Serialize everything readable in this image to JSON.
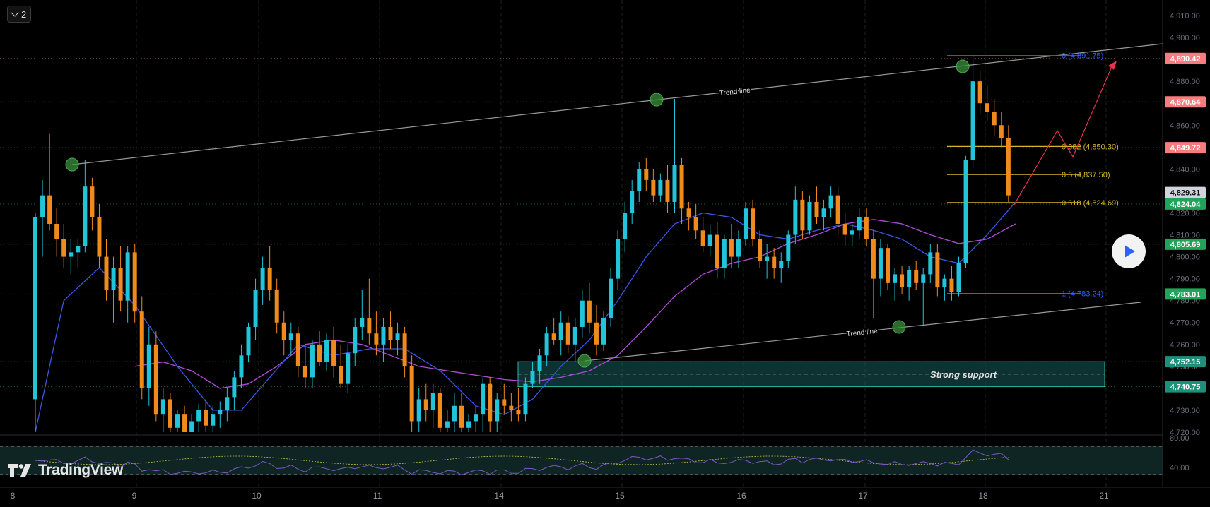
{
  "toolbar": {
    "collapse_label": "2"
  },
  "watermark": {
    "text": "TradingView"
  },
  "chart_data": {
    "type": "candlestick",
    "y_axis": {
      "ticks": [
        "4,910.00",
        "4,900.00",
        "4,890.00",
        "4,880.00",
        "4,870.00",
        "4,860.00",
        "4,850.00",
        "4,840.00",
        "4,830.00",
        "4,820.00",
        "4,810.00",
        "4,800.00",
        "4,790.00",
        "4,780.00",
        "4,770.00",
        "4,760.00",
        "4,750.00",
        "4,740.00",
        "4,730.00",
        "4,720.00"
      ],
      "range": [
        4717,
        4914
      ]
    },
    "x_axis": {
      "ticks": [
        "8",
        "9",
        "10",
        "11",
        "14",
        "15",
        "16",
        "17",
        "18",
        "21"
      ]
    },
    "price_labels": [
      {
        "value": 4890.42,
        "text": "4,890.42",
        "color": "#f77c80"
      },
      {
        "value": 4870.64,
        "text": "4,870.64",
        "color": "#f77c80"
      },
      {
        "value": 4849.72,
        "text": "4,849.72",
        "color": "#f77c80"
      },
      {
        "value": 4829.31,
        "text": "4,829.31",
        "color": "#d1d4dc"
      },
      {
        "value": 4824.04,
        "text": "4,824.04",
        "color": "#22ab94"
      },
      {
        "value": 4805.69,
        "text": "4,805.69",
        "color": "#22ab94"
      },
      {
        "value": 4783.01,
        "text": "4,783.01",
        "color": "#22ab94"
      },
      {
        "value": 4752.15,
        "text": "4,752.15",
        "color": "#22ab94"
      },
      {
        "value": 4740.75,
        "text": "4,740.75",
        "color": "#22ab94"
      }
    ],
    "fibonacci": [
      {
        "level": "0",
        "price": 4891.75,
        "text": "0 (4,891.75)",
        "color": "#2962ff"
      },
      {
        "level": "0.382",
        "price": 4850.3,
        "text": "0.382 (4,850.30)",
        "color": "#d4b62a"
      },
      {
        "level": "0.5",
        "price": 4837.5,
        "text": "0.5 (4,837.50)",
        "color": "#d4b62a"
      },
      {
        "level": "0.618",
        "price": 4824.69,
        "text": "0.618 (4,824.69)",
        "color": "#d4b62a"
      },
      {
        "level": "1",
        "price": 4783.24,
        "text": "1 (4,783.24)",
        "color": "#2962ff"
      }
    ],
    "annotations": {
      "trend_line_upper": "Trend line",
      "trend_line_lower": "Trend line",
      "support_zone": {
        "text": "Strong support",
        "top": 4752.15,
        "bottom": 4740.75
      }
    },
    "rsi": {
      "ticks": [
        "80.00",
        "40.00"
      ]
    },
    "candles": [
      [
        4735,
        4820,
        4717,
        4818
      ],
      [
        4818,
        4835,
        4800,
        4828
      ],
      [
        4828,
        4856,
        4812,
        4815
      ],
      [
        4815,
        4822,
        4800,
        4808
      ],
      [
        4808,
        4815,
        4795,
        4800
      ],
      [
        4800,
        4808,
        4792,
        4802
      ],
      [
        4802,
        4808,
        4795,
        4805
      ],
      [
        4805,
        4844,
        4802,
        4832
      ],
      [
        4832,
        4836,
        4812,
        4818
      ],
      [
        4818,
        4824,
        4795,
        4800
      ],
      [
        4800,
        4808,
        4780,
        4785
      ],
      [
        4785,
        4800,
        4770,
        4795
      ],
      [
        4795,
        4805,
        4775,
        4780
      ],
      [
        4780,
        4805,
        4770,
        4802
      ],
      [
        4802,
        4806,
        4770,
        4775
      ],
      [
        4775,
        4782,
        4735,
        4740
      ],
      [
        4740,
        4768,
        4732,
        4760
      ],
      [
        4760,
        4766,
        4725,
        4728
      ],
      [
        4728,
        4740,
        4720,
        4735
      ],
      [
        4735,
        4738,
        4717,
        4722
      ],
      [
        4722,
        4730,
        4717,
        4728
      ],
      [
        4728,
        4732,
        4717,
        4720
      ],
      [
        4720,
        4728,
        4717,
        4725
      ],
      [
        4725,
        4733,
        4718,
        4730
      ],
      [
        4730,
        4735,
        4720,
        4723
      ],
      [
        4723,
        4732,
        4720,
        4728
      ],
      [
        4728,
        4734,
        4722,
        4730
      ],
      [
        4730,
        4740,
        4725,
        4736
      ],
      [
        4736,
        4748,
        4730,
        4745
      ],
      [
        4745,
        4760,
        4740,
        4755
      ],
      [
        4755,
        4770,
        4752,
        4768
      ],
      [
        4768,
        4790,
        4762,
        4785
      ],
      [
        4785,
        4800,
        4778,
        4795
      ],
      [
        4795,
        4805,
        4780,
        4785
      ],
      [
        4785,
        4790,
        4765,
        4770
      ],
      [
        4770,
        4775,
        4755,
        4762
      ],
      [
        4762,
        4770,
        4755,
        4765
      ],
      [
        4765,
        4768,
        4745,
        4750
      ],
      [
        4750,
        4760,
        4740,
        4745
      ],
      [
        4745,
        4762,
        4740,
        4760
      ],
      [
        4760,
        4766,
        4750,
        4752
      ],
      [
        4752,
        4765,
        4748,
        4762
      ],
      [
        4762,
        4768,
        4745,
        4750
      ],
      [
        4750,
        4760,
        4740,
        4742
      ],
      [
        4742,
        4760,
        4738,
        4756
      ],
      [
        4756,
        4772,
        4750,
        4768
      ],
      [
        4768,
        4785,
        4762,
        4772
      ],
      [
        4772,
        4790,
        4760,
        4765
      ],
      [
        4765,
        4775,
        4755,
        4760
      ],
      [
        4760,
        4772,
        4752,
        4768
      ],
      [
        4768,
        4775,
        4758,
        4762
      ],
      [
        4762,
        4770,
        4755,
        4765
      ],
      [
        4765,
        4768,
        4745,
        4750
      ],
      [
        4750,
        4755,
        4720,
        4725
      ],
      [
        4725,
        4740,
        4717,
        4735
      ],
      [
        4735,
        4742,
        4725,
        4730
      ],
      [
        4730,
        4742,
        4722,
        4738
      ],
      [
        4738,
        4740,
        4717,
        4722
      ],
      [
        4722,
        4730,
        4717,
        4725
      ],
      [
        4725,
        4738,
        4720,
        4732
      ],
      [
        4732,
        4738,
        4717,
        4722
      ],
      [
        4722,
        4728,
        4717,
        4725
      ],
      [
        4725,
        4732,
        4717,
        4728
      ],
      [
        4728,
        4745,
        4720,
        4742
      ],
      [
        4742,
        4745,
        4720,
        4725
      ],
      [
        4725,
        4738,
        4720,
        4735
      ],
      [
        4735,
        4742,
        4728,
        4732
      ],
      [
        4732,
        4738,
        4725,
        4730
      ],
      [
        4730,
        4740,
        4725,
        4728
      ],
      [
        4728,
        4745,
        4725,
        4742
      ],
      [
        4742,
        4752,
        4740,
        4748
      ],
      [
        4748,
        4758,
        4742,
        4755
      ],
      [
        4755,
        4768,
        4750,
        4765
      ],
      [
        4765,
        4772,
        4760,
        4762
      ],
      [
        4762,
        4775,
        4755,
        4770
      ],
      [
        4770,
        4773,
        4756,
        4760
      ],
      [
        4760,
        4772,
        4752,
        4768
      ],
      [
        4768,
        4785,
        4763,
        4780
      ],
      [
        4780,
        4788,
        4765,
        4770
      ],
      [
        4770,
        4778,
        4755,
        4760
      ],
      [
        4760,
        4775,
        4757,
        4772
      ],
      [
        4772,
        4795,
        4768,
        4790
      ],
      [
        4790,
        4812,
        4785,
        4808
      ],
      [
        4808,
        4825,
        4802,
        4820
      ],
      [
        4820,
        4835,
        4815,
        4830
      ],
      [
        4830,
        4843,
        4825,
        4840
      ],
      [
        4840,
        4845,
        4830,
        4835
      ],
      [
        4835,
        4840,
        4825,
        4828
      ],
      [
        4828,
        4838,
        4825,
        4835
      ],
      [
        4835,
        4842,
        4820,
        4825
      ],
      [
        4825,
        4872,
        4820,
        4842
      ],
      [
        4842,
        4845,
        4815,
        4822
      ],
      [
        4822,
        4825,
        4812,
        4818
      ],
      [
        4818,
        4824,
        4808,
        4812
      ],
      [
        4812,
        4818,
        4802,
        4805
      ],
      [
        4805,
        4815,
        4800,
        4810
      ],
      [
        4810,
        4816,
        4790,
        4795
      ],
      [
        4795,
        4810,
        4790,
        4808
      ],
      [
        4808,
        4815,
        4795,
        4800
      ],
      [
        4800,
        4812,
        4795,
        4808
      ],
      [
        4808,
        4825,
        4805,
        4822
      ],
      [
        4822,
        4826,
        4805,
        4808
      ],
      [
        4808,
        4812,
        4795,
        4798
      ],
      [
        4798,
        4806,
        4790,
        4800
      ],
      [
        4800,
        4804,
        4790,
        4795
      ],
      [
        4795,
        4802,
        4788,
        4798
      ],
      [
        4798,
        4812,
        4795,
        4810
      ],
      [
        4810,
        4832,
        4806,
        4826
      ],
      [
        4826,
        4830,
        4808,
        4812
      ],
      [
        4812,
        4828,
        4810,
        4825
      ],
      [
        4825,
        4832,
        4815,
        4818
      ],
      [
        4818,
        4826,
        4812,
        4822
      ],
      [
        4822,
        4832,
        4818,
        4828
      ],
      [
        4828,
        4832,
        4810,
        4815
      ],
      [
        4815,
        4820,
        4805,
        4810
      ],
      [
        4810,
        4815,
        4805,
        4812
      ],
      [
        4812,
        4822,
        4808,
        4818
      ],
      [
        4818,
        4822,
        4805,
        4808
      ],
      [
        4808,
        4812,
        4772,
        4790
      ],
      [
        4790,
        4808,
        4782,
        4804
      ],
      [
        4804,
        4806,
        4785,
        4788
      ],
      [
        4788,
        4795,
        4780,
        4792
      ],
      [
        4792,
        4796,
        4783,
        4786
      ],
      [
        4786,
        4796,
        4780,
        4794
      ],
      [
        4794,
        4798,
        4785,
        4788
      ],
      [
        4788,
        4795,
        4769,
        4792
      ],
      [
        4792,
        4806,
        4788,
        4802
      ],
      [
        4802,
        4806,
        4782,
        4786
      ],
      [
        4786,
        4792,
        4780,
        4790
      ],
      [
        4790,
        4796,
        4780,
        4784
      ],
      [
        4784,
        4800,
        4782,
        4797
      ],
      [
        4797,
        4846,
        4795,
        4844
      ],
      [
        4844,
        4892,
        4840,
        4880
      ],
      [
        4880,
        4885,
        4865,
        4870
      ],
      [
        4870,
        4878,
        4862,
        4866
      ],
      [
        4866,
        4872,
        4855,
        4860
      ],
      [
        4860,
        4866,
        4850,
        4854
      ],
      [
        4854,
        4860,
        4825,
        4828
      ]
    ],
    "ma_blue": [
      [
        0,
        4720
      ],
      [
        4,
        4780
      ],
      [
        9,
        4795
      ],
      [
        14,
        4778
      ],
      [
        20,
        4750
      ],
      [
        25,
        4730
      ],
      [
        29,
        4730
      ],
      [
        33,
        4745
      ],
      [
        37,
        4760
      ],
      [
        42,
        4755
      ],
      [
        47,
        4758
      ],
      [
        52,
        4758
      ],
      [
        57,
        4748
      ],
      [
        62,
        4732
      ],
      [
        66,
        4728
      ],
      [
        70,
        4735
      ],
      [
        74,
        4750
      ],
      [
        78,
        4762
      ],
      [
        82,
        4780
      ],
      [
        86,
        4800
      ],
      [
        90,
        4815
      ],
      [
        94,
        4820
      ],
      [
        98,
        4818
      ],
      [
        102,
        4810
      ],
      [
        106,
        4808
      ],
      [
        110,
        4812
      ],
      [
        114,
        4815
      ],
      [
        118,
        4812
      ],
      [
        122,
        4808
      ],
      [
        126,
        4800
      ],
      [
        130,
        4797
      ],
      [
        134,
        4810
      ],
      [
        138,
        4825
      ]
    ],
    "ma_purple": [
      [
        14,
        4750
      ],
      [
        18,
        4752
      ],
      [
        22,
        4748
      ],
      [
        26,
        4740
      ],
      [
        30,
        4742
      ],
      [
        34,
        4750
      ],
      [
        38,
        4760
      ],
      [
        42,
        4762
      ],
      [
        46,
        4760
      ],
      [
        50,
        4755
      ],
      [
        54,
        4750
      ],
      [
        58,
        4748
      ],
      [
        62,
        4746
      ],
      [
        66,
        4744
      ],
      [
        70,
        4743
      ],
      [
        74,
        4745
      ],
      [
        78,
        4748
      ],
      [
        82,
        4755
      ],
      [
        86,
        4768
      ],
      [
        90,
        4782
      ],
      [
        94,
        4792
      ],
      [
        98,
        4797
      ],
      [
        102,
        4800
      ],
      [
        106,
        4806
      ],
      [
        110,
        4810
      ],
      [
        114,
        4815
      ],
      [
        118,
        4817
      ],
      [
        122,
        4815
      ],
      [
        126,
        4810
      ],
      [
        130,
        4806
      ],
      [
        134,
        4808
      ],
      [
        138,
        4815
      ]
    ]
  }
}
